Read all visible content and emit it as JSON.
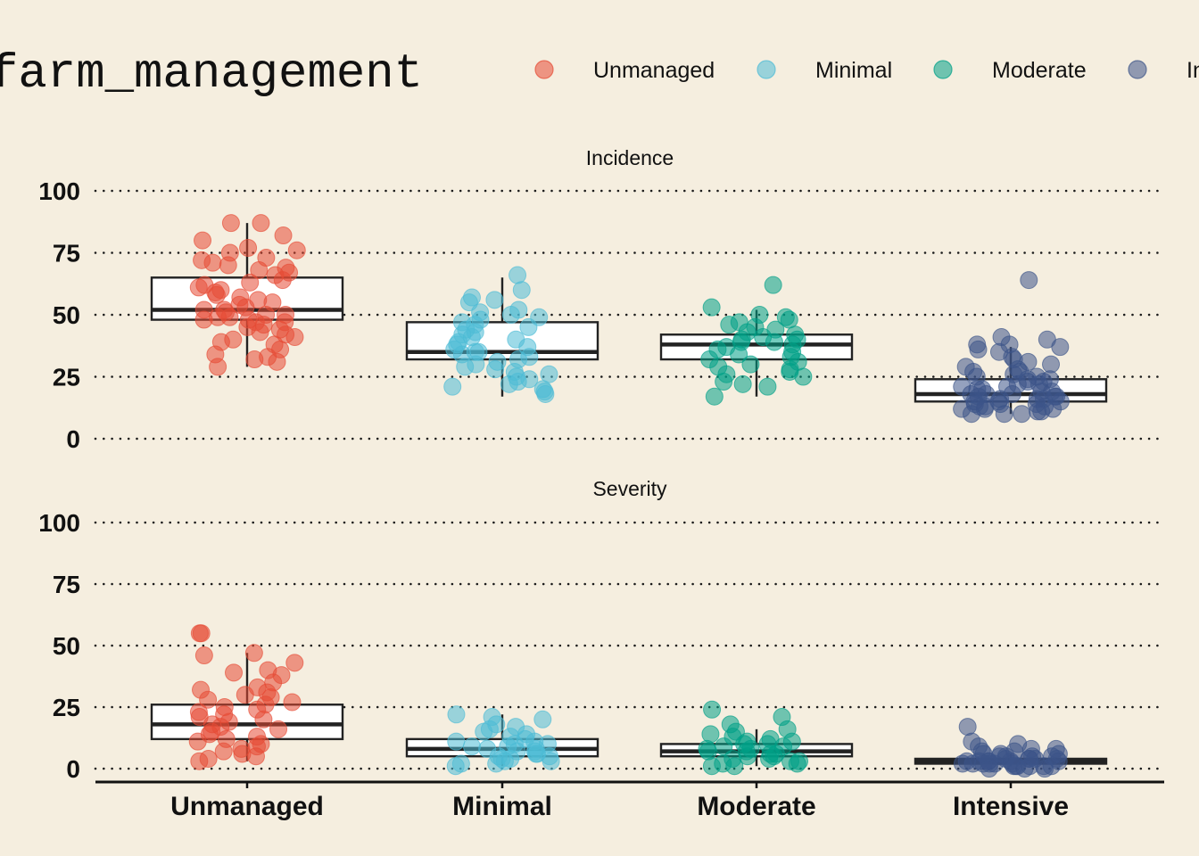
{
  "legend": {
    "title": "farm_management",
    "entries": [
      "Unmanaged",
      "Minimal",
      "Moderate",
      "Intensive"
    ]
  },
  "colors": {
    "background": "#F5EEDF",
    "Unmanaged": "#E64B35",
    "Minimal": "#4DBBD5",
    "Moderate": "#00A087",
    "Intensive": "#3C5488",
    "box_fill": "#FFFFFF",
    "box_stroke": "#222222",
    "grid": "#1A1A1A"
  },
  "chart_data": {
    "type": "box",
    "overlay": "jittered points",
    "categories": [
      "Unmanaged",
      "Minimal",
      "Moderate",
      "Intensive"
    ],
    "ylim": [
      0,
      100
    ],
    "yticks": [
      0,
      25,
      50,
      75,
      100
    ],
    "grid": "horizontal dotted",
    "legend_position": "top",
    "panels": [
      {
        "name": "Incidence",
        "boxes": [
          {
            "category": "Unmanaged",
            "q1": 48,
            "median": 52,
            "q3": 65,
            "whisker_low": 29,
            "whisker_high": 87
          },
          {
            "category": "Minimal",
            "q1": 32,
            "median": 35,
            "q3": 47,
            "whisker_low": 17,
            "whisker_high": 65
          },
          {
            "category": "Moderate",
            "q1": 32,
            "median": 38,
            "q3": 42,
            "whisker_low": 17,
            "whisker_high": 52
          },
          {
            "category": "Intensive",
            "q1": 15,
            "median": 18,
            "q3": 24,
            "whisker_low": 10,
            "whisker_high": 37
          }
        ],
        "points": {
          "Unmanaged": [
            87,
            87,
            82,
            80,
            77,
            76,
            75,
            73,
            72,
            71,
            70,
            69,
            68,
            67,
            66,
            64,
            63,
            62,
            61,
            60,
            59,
            58,
            57,
            56,
            55,
            54,
            53,
            52,
            52,
            51,
            50,
            50,
            49,
            49,
            48,
            48,
            47,
            47,
            46,
            45,
            44,
            43,
            42,
            41,
            40,
            39,
            38,
            36,
            34,
            33,
            32,
            31,
            29
          ],
          "Minimal": [
            66,
            60,
            57,
            56,
            55,
            52,
            51,
            50,
            49,
            48,
            47,
            46,
            45,
            44,
            43,
            42,
            41,
            40,
            39,
            38,
            37,
            36,
            35,
            35,
            34,
            33,
            32,
            31,
            30,
            29,
            28,
            27,
            26,
            25,
            24,
            23,
            22,
            21,
            20,
            19,
            18
          ],
          "Moderate": [
            62,
            53,
            50,
            49,
            48,
            47,
            46,
            45,
            44,
            43,
            42,
            41,
            40,
            40,
            39,
            39,
            38,
            37,
            36,
            35,
            34,
            33,
            32,
            31,
            30,
            29,
            28,
            27,
            26,
            25,
            23,
            22,
            21,
            17
          ],
          "Intensive": [
            64,
            41,
            40,
            38,
            38,
            37,
            36,
            35,
            33,
            32,
            31,
            30,
            29,
            28,
            27,
            27,
            26,
            25,
            25,
            24,
            24,
            23,
            23,
            22,
            22,
            21,
            21,
            20,
            20,
            19,
            19,
            18,
            18,
            18,
            17,
            17,
            17,
            16,
            16,
            16,
            15,
            15,
            15,
            14,
            14,
            14,
            13,
            13,
            13,
            12,
            12,
            12,
            11,
            11,
            10,
            10,
            10
          ]
        }
      },
      {
        "name": "Severity",
        "boxes": [
          {
            "category": "Unmanaged",
            "q1": 12,
            "median": 18,
            "q3": 26,
            "whisker_low": 3,
            "whisker_high": 47
          },
          {
            "category": "Minimal",
            "q1": 5,
            "median": 8,
            "q3": 12,
            "whisker_low": 1,
            "whisker_high": 22
          },
          {
            "category": "Moderate",
            "q1": 5,
            "median": 7,
            "q3": 10,
            "whisker_low": 1,
            "whisker_high": 16
          },
          {
            "category": "Intensive",
            "q1": 2,
            "median": 3,
            "q3": 4,
            "whisker_low": 1,
            "whisker_high": 6
          }
        ],
        "points": {
          "Unmanaged": [
            55,
            55,
            47,
            46,
            43,
            40,
            39,
            38,
            35,
            33,
            32,
            31,
            30,
            29,
            28,
            27,
            26,
            25,
            24,
            23,
            22,
            21,
            20,
            19,
            18,
            17,
            16,
            15,
            14,
            13,
            12,
            11,
            10,
            9,
            8,
            7,
            6,
            5,
            4,
            3
          ],
          "Minimal": [
            22,
            21,
            20,
            18,
            17,
            16,
            15,
            14,
            13,
            12,
            11,
            11,
            10,
            10,
            9,
            9,
            8,
            8,
            7,
            7,
            6,
            6,
            5,
            5,
            4,
            4,
            3,
            3,
            2,
            2,
            1
          ],
          "Moderate": [
            24,
            21,
            18,
            16,
            15,
            14,
            13,
            12,
            11,
            11,
            10,
            10,
            9,
            9,
            8,
            8,
            7,
            7,
            6,
            6,
            5,
            5,
            4,
            4,
            3,
            3,
            2,
            2,
            1,
            1
          ],
          "Intensive": [
            17,
            11,
            10,
            9,
            8,
            8,
            7,
            7,
            6,
            6,
            6,
            5,
            5,
            5,
            5,
            4,
            4,
            4,
            4,
            4,
            3,
            3,
            3,
            3,
            3,
            3,
            2,
            2,
            2,
            2,
            2,
            2,
            1,
            1,
            1,
            1,
            1,
            1,
            0,
            0,
            0
          ]
        }
      }
    ]
  }
}
